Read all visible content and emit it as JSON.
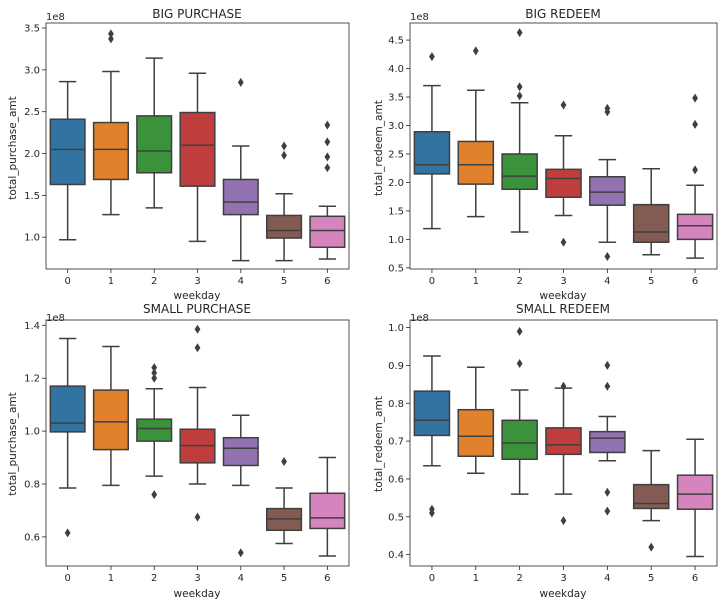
{
  "chart_data": [
    {
      "type": "box",
      "title": "BIG PURCHASE",
      "xlabel": "weekday",
      "ylabel": "total_purchase_amt",
      "scale_label": "1e8",
      "ylim": [
        0.62,
        3.56
      ],
      "yticks": [
        1.0,
        1.5,
        2.0,
        2.5,
        3.0,
        3.5
      ],
      "ytick_labels": [
        "1.0",
        "1.5",
        "2.0",
        "2.5",
        "3.0",
        "3.5"
      ],
      "categories": [
        "0",
        "1",
        "2",
        "3",
        "4",
        "5",
        "6"
      ],
      "boxes": [
        {
          "category": "0",
          "q1": 1.63,
          "median": 2.05,
          "q3": 2.41,
          "whisker_low": 0.97,
          "whisker_high": 2.86,
          "fliers": []
        },
        {
          "category": "1",
          "q1": 1.69,
          "median": 2.05,
          "q3": 2.37,
          "whisker_low": 1.27,
          "whisker_high": 2.98,
          "fliers": [
            3.37,
            3.43
          ]
        },
        {
          "category": "2",
          "q1": 1.77,
          "median": 2.03,
          "q3": 2.45,
          "whisker_low": 1.35,
          "whisker_high": 3.14,
          "fliers": []
        },
        {
          "category": "3",
          "q1": 1.61,
          "median": 2.1,
          "q3": 2.49,
          "whisker_low": 0.95,
          "whisker_high": 2.96,
          "fliers": []
        },
        {
          "category": "4",
          "q1": 1.27,
          "median": 1.42,
          "q3": 1.69,
          "whisker_low": 0.72,
          "whisker_high": 2.09,
          "fliers": [
            2.85
          ]
        },
        {
          "category": "5",
          "q1": 0.99,
          "median": 1.08,
          "q3": 1.26,
          "whisker_low": 0.72,
          "whisker_high": 1.52,
          "fliers": [
            1.98,
            2.09
          ]
        },
        {
          "category": "6",
          "q1": 0.88,
          "median": 1.08,
          "q3": 1.25,
          "whisker_low": 0.74,
          "whisker_high": 1.37,
          "fliers": [
            1.83,
            1.96,
            2.14,
            2.34
          ]
        }
      ]
    },
    {
      "type": "box",
      "title": "BIG REDEEM",
      "xlabel": "weekday",
      "ylabel": "total_redeem_amt",
      "scale_label": "1e8",
      "ylim": [
        0.48,
        4.8
      ],
      "yticks": [
        0.5,
        1.0,
        1.5,
        2.0,
        2.5,
        3.0,
        3.5,
        4.0,
        4.5
      ],
      "ytick_labels": [
        "0.5",
        "1.0",
        "1.5",
        "2.0",
        "2.5",
        "3.0",
        "3.5",
        "4.0",
        "4.5"
      ],
      "categories": [
        "0",
        "1",
        "2",
        "3",
        "4",
        "5",
        "6"
      ],
      "boxes": [
        {
          "category": "0",
          "q1": 2.15,
          "median": 2.31,
          "q3": 2.89,
          "whisker_low": 1.19,
          "whisker_high": 3.7,
          "fliers": [
            4.21
          ]
        },
        {
          "category": "1",
          "q1": 1.97,
          "median": 2.31,
          "q3": 2.72,
          "whisker_low": 1.4,
          "whisker_high": 3.62,
          "fliers": [
            4.31
          ]
        },
        {
          "category": "2",
          "q1": 1.88,
          "median": 2.11,
          "q3": 2.5,
          "whisker_low": 1.13,
          "whisker_high": 3.4,
          "fliers": [
            3.52,
            3.68,
            4.63
          ]
        },
        {
          "category": "3",
          "q1": 1.74,
          "median": 2.07,
          "q3": 2.23,
          "whisker_low": 1.42,
          "whisker_high": 2.82,
          "fliers": [
            0.95,
            3.36
          ]
        },
        {
          "category": "4",
          "q1": 1.6,
          "median": 1.83,
          "q3": 2.1,
          "whisker_low": 0.95,
          "whisker_high": 2.4,
          "fliers": [
            0.7,
            3.24,
            3.3
          ]
        },
        {
          "category": "5",
          "q1": 0.95,
          "median": 1.13,
          "q3": 1.61,
          "whisker_low": 0.73,
          "whisker_high": 2.24,
          "fliers": []
        },
        {
          "category": "6",
          "q1": 1.0,
          "median": 1.24,
          "q3": 1.44,
          "whisker_low": 0.67,
          "whisker_high": 1.95,
          "fliers": [
            2.22,
            3.02,
            3.48
          ]
        }
      ]
    },
    {
      "type": "box",
      "title": "SMALL PURCHASE",
      "xlabel": "weekday",
      "ylabel": "total_purchase_amt",
      "scale_label": "1e8",
      "ylim": [
        0.49,
        1.42
      ],
      "yticks": [
        0.6,
        0.8,
        1.0,
        1.2,
        1.4
      ],
      "ytick_labels": [
        "0.6",
        "0.8",
        "1.0",
        "1.2",
        "1.4"
      ],
      "categories": [
        "0",
        "1",
        "2",
        "3",
        "4",
        "5",
        "6"
      ],
      "boxes": [
        {
          "category": "0",
          "q1": 0.997,
          "median": 1.03,
          "q3": 1.17,
          "whisker_low": 0.785,
          "whisker_high": 1.35,
          "fliers": [
            0.615
          ]
        },
        {
          "category": "1",
          "q1": 0.93,
          "median": 1.035,
          "q3": 1.155,
          "whisker_low": 0.795,
          "whisker_high": 1.32,
          "fliers": []
        },
        {
          "category": "2",
          "q1": 0.962,
          "median": 1.01,
          "q3": 1.045,
          "whisker_low": 0.83,
          "whisker_high": 1.16,
          "fliers": [
            0.76,
            1.2,
            1.22,
            1.24
          ]
        },
        {
          "category": "3",
          "q1": 0.88,
          "median": 0.945,
          "q3": 1.007,
          "whisker_low": 0.8,
          "whisker_high": 1.165,
          "fliers": [
            0.675,
            1.315,
            1.385
          ]
        },
        {
          "category": "4",
          "q1": 0.87,
          "median": 0.935,
          "q3": 0.975,
          "whisker_low": 0.795,
          "whisker_high": 1.06,
          "fliers": [
            0.54
          ]
        },
        {
          "category": "5",
          "q1": 0.625,
          "median": 0.668,
          "q3": 0.707,
          "whisker_low": 0.575,
          "whisker_high": 0.785,
          "fliers": [
            0.885
          ]
        },
        {
          "category": "6",
          "q1": 0.632,
          "median": 0.672,
          "q3": 0.765,
          "whisker_low": 0.528,
          "whisker_high": 0.9,
          "fliers": []
        }
      ]
    },
    {
      "type": "box",
      "title": "SMALL REDEEM",
      "xlabel": "weekday",
      "ylabel": "total_redeem_amt",
      "scale_label": "1e8",
      "ylim": [
        0.37,
        1.02
      ],
      "yticks": [
        0.4,
        0.5,
        0.6,
        0.7,
        0.8,
        0.9,
        1.0
      ],
      "ytick_labels": [
        "0.4",
        "0.5",
        "0.6",
        "0.7",
        "0.8",
        "0.9",
        "1.0"
      ],
      "categories": [
        "0",
        "1",
        "2",
        "3",
        "4",
        "5",
        "6"
      ],
      "boxes": [
        {
          "category": "0",
          "q1": 0.715,
          "median": 0.755,
          "q3": 0.832,
          "whisker_low": 0.635,
          "whisker_high": 0.925,
          "fliers": [
            0.51,
            0.52
          ]
        },
        {
          "category": "1",
          "q1": 0.66,
          "median": 0.713,
          "q3": 0.783,
          "whisker_low": 0.615,
          "whisker_high": 0.895,
          "fliers": []
        },
        {
          "category": "2",
          "q1": 0.652,
          "median": 0.695,
          "q3": 0.755,
          "whisker_low": 0.56,
          "whisker_high": 0.835,
          "fliers": [
            0.905,
            0.99
          ]
        },
        {
          "category": "3",
          "q1": 0.665,
          "median": 0.69,
          "q3": 0.735,
          "whisker_low": 0.56,
          "whisker_high": 0.84,
          "fliers": [
            0.49,
            0.845
          ]
        },
        {
          "category": "4",
          "q1": 0.67,
          "median": 0.708,
          "q3": 0.725,
          "whisker_low": 0.648,
          "whisker_high": 0.765,
          "fliers": [
            0.515,
            0.565,
            0.845,
            0.9
          ]
        },
        {
          "category": "5",
          "q1": 0.522,
          "median": 0.535,
          "q3": 0.585,
          "whisker_low": 0.49,
          "whisker_high": 0.675,
          "fliers": [
            0.42
          ]
        },
        {
          "category": "6",
          "q1": 0.52,
          "median": 0.56,
          "q3": 0.61,
          "whisker_low": 0.395,
          "whisker_high": 0.705,
          "fliers": []
        }
      ]
    }
  ],
  "palette": [
    "#3274a1",
    "#e1812c",
    "#3a923a",
    "#c03d3e",
    "#9372b2",
    "#845b53",
    "#d684bd"
  ]
}
